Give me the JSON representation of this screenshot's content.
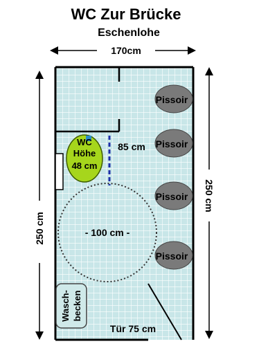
{
  "title": "WC Zur Brücke",
  "subtitle": "Eschenlohe",
  "dimensions": {
    "width_top": "170cm",
    "height_left": "250 cm",
    "height_right": "250 cm"
  },
  "fixtures": {
    "wc_line1": "WC",
    "wc_line2": "Höhe",
    "wc_line3": "48 cm",
    "wc_clearance": "85 cm",
    "turning_circle": "- 100 cm -",
    "urinals": [
      "Pissoir",
      "Pissoir",
      "Pissoir",
      "Pissoir"
    ],
    "sink_line1": "Wasch-",
    "sink_line2": "becken",
    "door": "Tür 75 cm"
  },
  "colors": {
    "tile": "#c8e6e8",
    "tile_grid": "#ffffff",
    "wall": "#000000",
    "urinal": "#7a7a7a",
    "toilet": "#a6d61c",
    "sink": "#cfe9e9",
    "clearance_line": "#1d2fa8"
  }
}
